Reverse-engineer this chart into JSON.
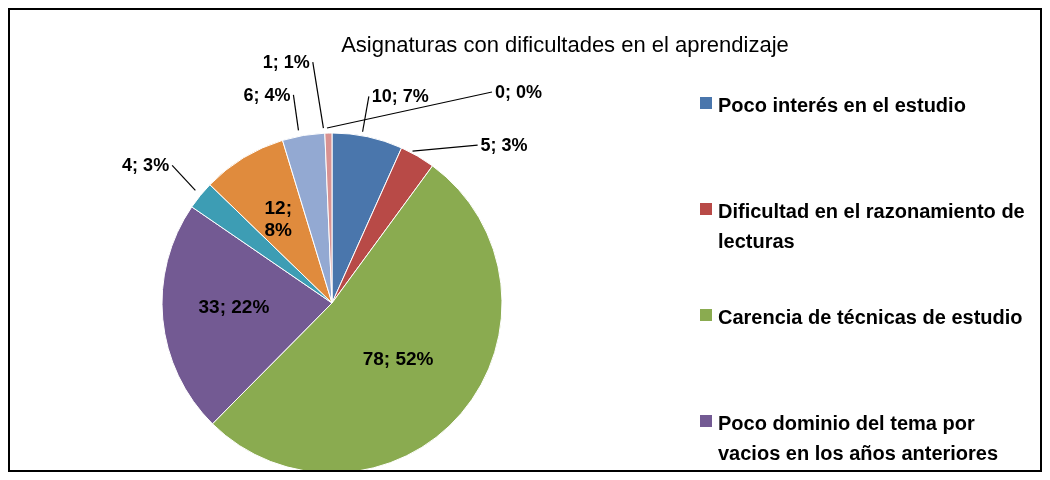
{
  "chart_data": {
    "type": "pie",
    "title": "Asignaturas con dificultades en el aprendizaje",
    "categories": [
      "Poco interés en el estudio",
      "Dificultad en el razonamiento de lecturas",
      "Carencia de técnicas de estudio",
      "Poco dominio del tema por vacios en los años anteriores",
      null,
      null,
      null,
      null,
      null
    ],
    "values": [
      10,
      5,
      78,
      33,
      4,
      12,
      6,
      1,
      0
    ],
    "colors": [
      "#4a76ac",
      "#b84a47",
      "#8aab50",
      "#735a93",
      "#3d9db4",
      "#e08b3d",
      "#93a9d2",
      "#d89292",
      "#b7cb8a"
    ],
    "value_labels": [
      "10; 7%",
      "5; 3%",
      "78; 52%",
      "33; 22%",
      "4; 3%",
      "12; 8%",
      "6; 4%",
      "1; 1%",
      "0; 0%"
    ],
    "legend": "right"
  }
}
